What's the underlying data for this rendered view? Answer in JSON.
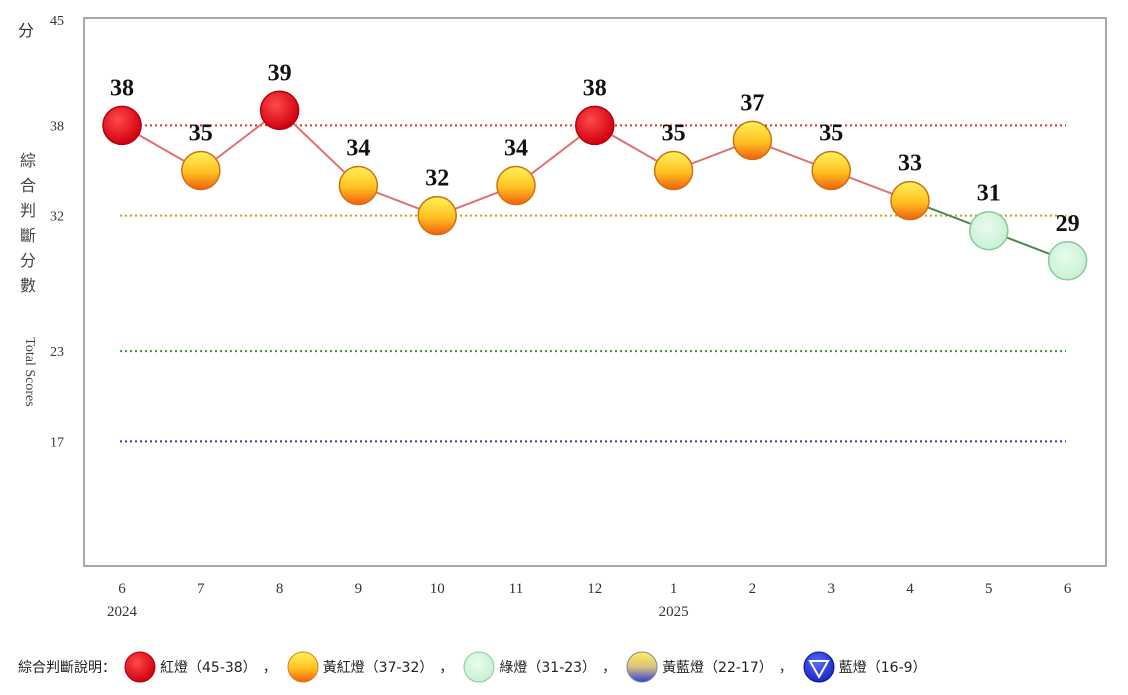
{
  "chart_data": {
    "type": "line",
    "ylim": [
      9,
      45
    ],
    "y_unit_label": "分",
    "ylabel_zh": "綜合判斷分數",
    "ylabel_en": "Total Scores",
    "y_ticks": [
      45,
      38,
      32,
      23,
      17
    ],
    "thresholds": [
      {
        "value": 38,
        "color": "#e03030"
      },
      {
        "value": 32,
        "color": "#c8a020"
      },
      {
        "value": 23,
        "color": "#3a9a3a"
      },
      {
        "value": 17,
        "color": "#3a3aaa"
      }
    ],
    "categories": [
      "6",
      "7",
      "8",
      "9",
      "10",
      "11",
      "12",
      "1",
      "2",
      "3",
      "4",
      "5",
      "6"
    ],
    "year_labels": [
      {
        "index": 0,
        "text": "2024"
      },
      {
        "index": 7,
        "text": "2025"
      }
    ],
    "values": [
      38,
      35,
      39,
      34,
      32,
      34,
      38,
      35,
      37,
      35,
      33,
      31,
      29
    ],
    "colors": {
      "red": "#e8141e",
      "yellow_red_top": "#ffe63a",
      "yellow_red_bottom": "#f07818",
      "green": "#d6f5dc",
      "blue": "#1a2fd8",
      "line_red": "#e07070",
      "line_green": "#4a8a4a",
      "plot_border": "#a0a0a0"
    }
  },
  "legend": {
    "title": "綜合判斷說明：",
    "items": [
      {
        "icon": "red-light-icon",
        "label": "紅燈（45-38）"
      },
      {
        "icon": "yellow-red-light-icon",
        "label": "黃紅燈（37-32）"
      },
      {
        "icon": "green-light-icon",
        "label": "綠燈（31-23）"
      },
      {
        "icon": "yellow-blue-light-icon",
        "label": "黃藍燈（22-17）"
      },
      {
        "icon": "blue-light-icon",
        "label": "藍燈（16-9）"
      }
    ],
    "separator": "，"
  }
}
